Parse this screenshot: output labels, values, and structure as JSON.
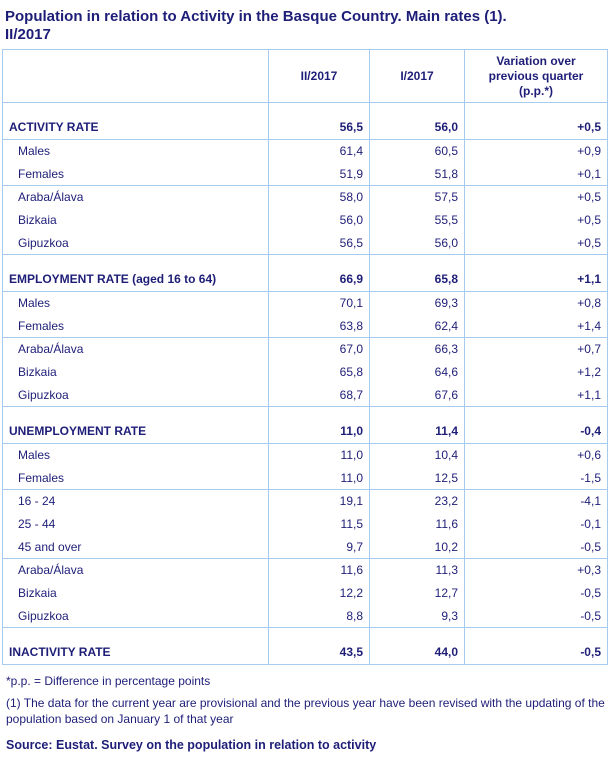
{
  "colors": {
    "text_navy": "#1e1e78",
    "grid_blue": "#a6cbee",
    "background": "#ffffff"
  },
  "chart_data": {
    "type": "table",
    "title": "Population in relation to Activity in the Basque Country. Main rates (1). II/2017",
    "columns": [
      "",
      "II/2017",
      "I/2017",
      "Variation over previous quarter (p.p.*)"
    ],
    "decimal_style": "comma",
    "rows": [
      {
        "type": "spacer"
      },
      {
        "type": "section",
        "label": "ACTIVITY RATE",
        "values": [
          "56,5",
          "56,0",
          "+0,5"
        ],
        "sep": true
      },
      {
        "type": "sub",
        "label": "Males",
        "values": [
          "61,4",
          "60,5",
          "+0,9"
        ]
      },
      {
        "type": "sub",
        "label": "Females",
        "values": [
          "51,9",
          "51,8",
          "+0,1"
        ],
        "sep": true
      },
      {
        "type": "sub",
        "label": "Araba/Álava",
        "values": [
          "58,0",
          "57,5",
          "+0,5"
        ]
      },
      {
        "type": "sub",
        "label": "Bizkaia",
        "values": [
          "56,0",
          "55,5",
          "+0,5"
        ]
      },
      {
        "type": "sub",
        "label": "Gipuzkoa",
        "values": [
          "56,5",
          "56,0",
          "+0,5"
        ],
        "sep": true
      },
      {
        "type": "spacer"
      },
      {
        "type": "section",
        "label": "EMPLOYMENT RATE (aged 16 to 64)",
        "values": [
          "66,9",
          "65,8",
          "+1,1"
        ],
        "sep": true
      },
      {
        "type": "sub",
        "label": "Males",
        "values": [
          "70,1",
          "69,3",
          "+0,8"
        ]
      },
      {
        "type": "sub",
        "label": "Females",
        "values": [
          "63,8",
          "62,4",
          "+1,4"
        ],
        "sep": true
      },
      {
        "type": "sub",
        "label": "Araba/Álava",
        "values": [
          "67,0",
          "66,3",
          "+0,7"
        ]
      },
      {
        "type": "sub",
        "label": "Bizkaia",
        "values": [
          "65,8",
          "64,6",
          "+1,2"
        ]
      },
      {
        "type": "sub",
        "label": "Gipuzkoa",
        "values": [
          "68,7",
          "67,6",
          "+1,1"
        ],
        "sep": true
      },
      {
        "type": "spacer"
      },
      {
        "type": "section",
        "label": "UNEMPLOYMENT RATE",
        "values": [
          "11,0",
          "11,4",
          "-0,4"
        ],
        "sep": true
      },
      {
        "type": "sub",
        "label": "Males",
        "values": [
          "11,0",
          "10,4",
          "+0,6"
        ]
      },
      {
        "type": "sub",
        "label": "Females",
        "values": [
          "11,0",
          "12,5",
          "-1,5"
        ],
        "sep": true
      },
      {
        "type": "sub",
        "label": "16 - 24",
        "values": [
          "19,1",
          "23,2",
          "-4,1"
        ]
      },
      {
        "type": "sub",
        "label": "25 - 44",
        "values": [
          "11,5",
          "11,6",
          "-0,1"
        ]
      },
      {
        "type": "sub",
        "label": "45 and over",
        "values": [
          "9,7",
          "10,2",
          "-0,5"
        ],
        "sep": true
      },
      {
        "type": "sub",
        "label": "Araba/Álava",
        "values": [
          "11,6",
          "11,3",
          "+0,3"
        ]
      },
      {
        "type": "sub",
        "label": "Bizkaia",
        "values": [
          "12,2",
          "12,7",
          "-0,5"
        ]
      },
      {
        "type": "sub",
        "label": "Gipuzkoa",
        "values": [
          "8,8",
          "9,3",
          "-0,5"
        ],
        "sep": true
      },
      {
        "type": "spacer"
      },
      {
        "type": "section",
        "label": "INACTIVITY RATE",
        "values": [
          "43,5",
          "44,0",
          "-0,5"
        ],
        "sep": true
      }
    ]
  },
  "footnotes": [
    "*p.p. = Difference in percentage points",
    "(1) The data for the current year are provisional and the previous year have been revised with the updating of the population based on January 1 of that year"
  ],
  "source": "Source: Eustat. Survey on the population in relation to activity"
}
